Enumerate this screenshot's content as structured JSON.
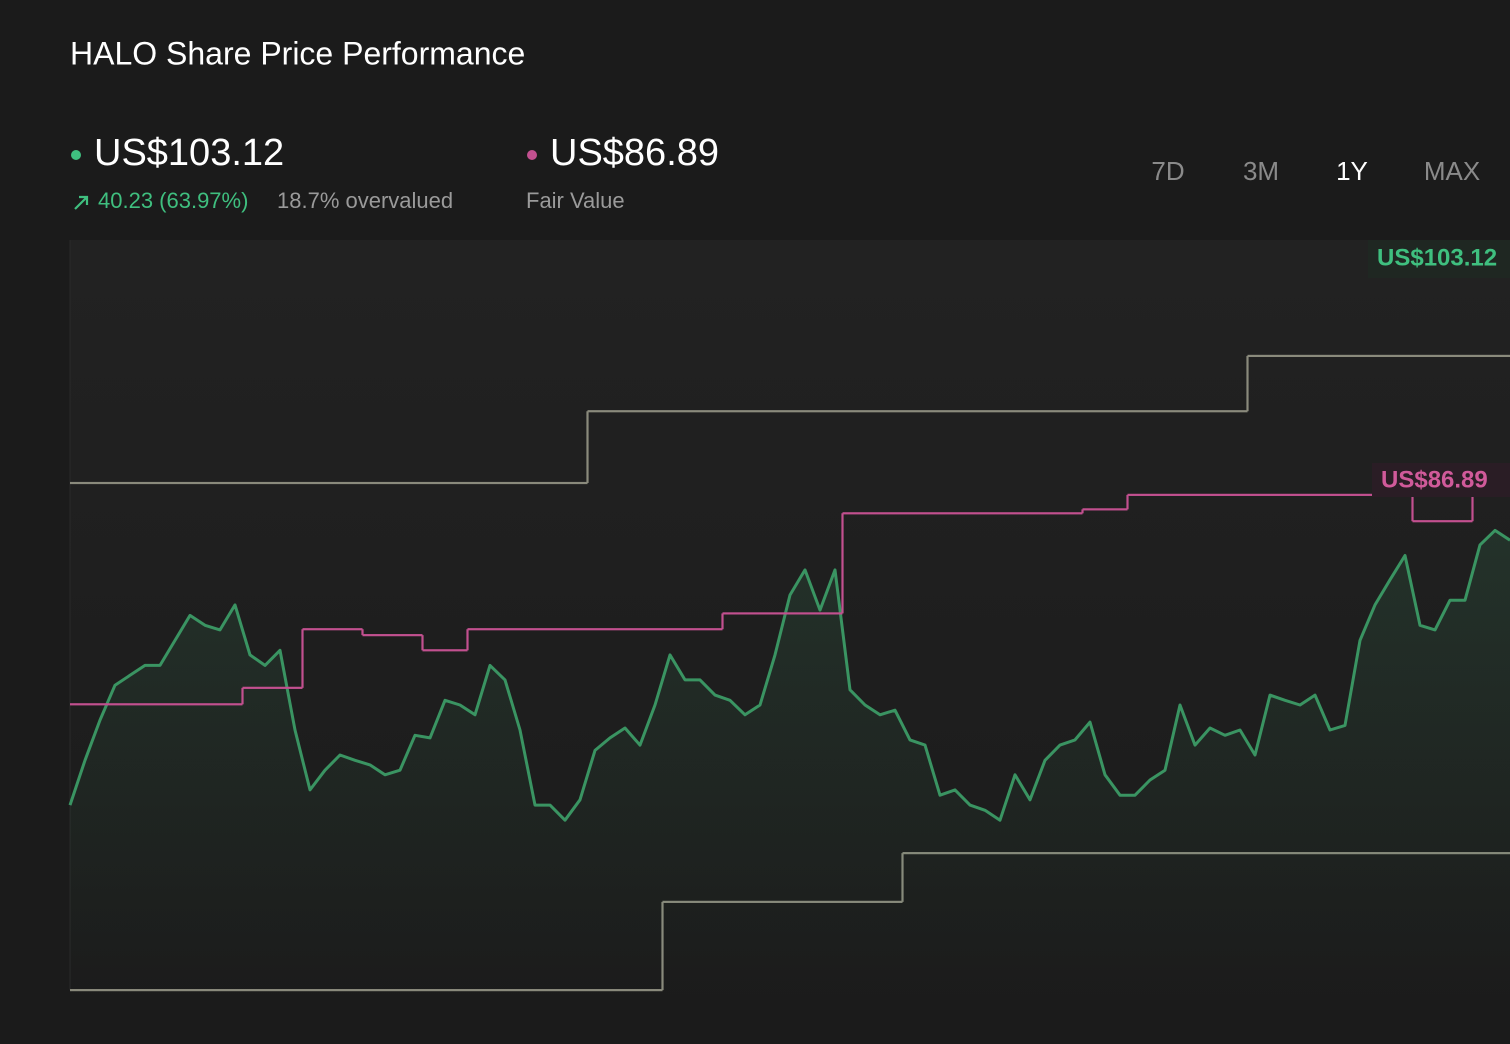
{
  "header": {
    "title": "HALO Share Price Performance",
    "price": "US$103.12",
    "change": "40.23 (63.97%)",
    "valuation": "18.7% overvalued",
    "fair_value": "US$86.89",
    "fair_value_label": "Fair Value"
  },
  "range_buttons": [
    "7D",
    "3M",
    "1Y",
    "MAX"
  ],
  "active_range": 2,
  "chart_data": {
    "type": "line",
    "price_tag": "US$103.12",
    "fair_value_tag": "US$86.89",
    "ylim": [
      33.3,
      148.7
    ],
    "series": [
      {
        "color": "#8a8a7c",
        "step": true,
        "values": [
          111.8,
          111.8,
          111.8,
          111.8,
          111.8,
          111.8,
          111.8,
          111.8,
          111.8,
          111.8,
          111.8,
          111.8,
          111.8,
          111.8,
          111.8,
          111.8,
          111.8,
          111.8,
          111.8,
          111.8,
          111.8,
          111.8,
          111.8,
          111.8,
          111.8,
          111.8,
          111.8,
          111.8,
          111.8,
          111.8,
          111.8,
          111.8,
          111.8,
          111.8,
          111.8,
          122.7,
          122.7,
          122.7,
          122.7,
          122.7,
          122.7,
          122.7,
          122.7,
          122.7,
          122.7,
          122.7,
          122.7,
          122.7,
          122.7,
          122.7,
          122.7,
          122.7,
          122.7,
          122.7,
          122.7,
          122.7,
          122.7,
          122.7,
          122.7,
          122.7,
          122.7,
          122.7,
          122.7,
          122.7,
          122.7,
          122.7,
          122.7,
          122.7,
          122.7,
          122.7,
          122.7,
          122.7,
          122.7,
          122.7,
          122.7,
          122.7,
          122.7,
          122.7,
          122.7,
          131.1,
          131.1,
          131.1,
          131.1,
          131.1,
          131.1,
          131.1,
          131.1,
          131.1,
          131.1,
          131.1,
          131.1,
          131.1,
          131.1,
          131.1,
          131.1,
          131.1,
          131.1
        ]
      },
      {
        "color": "#8a8a7c",
        "step": true,
        "values": [
          34.8,
          34.8,
          34.8,
          34.8,
          34.8,
          34.8,
          34.8,
          34.8,
          34.8,
          34.8,
          34.8,
          34.8,
          34.8,
          34.8,
          34.8,
          34.8,
          34.8,
          34.8,
          34.8,
          34.8,
          34.8,
          34.8,
          34.8,
          34.8,
          34.8,
          34.8,
          34.8,
          34.8,
          34.8,
          34.8,
          34.8,
          34.8,
          34.8,
          34.8,
          34.8,
          34.8,
          34.8,
          34.8,
          34.8,
          34.8,
          48.2,
          48.2,
          48.2,
          48.2,
          48.2,
          48.2,
          48.2,
          48.2,
          48.2,
          48.2,
          48.2,
          48.2,
          48.2,
          48.2,
          48.2,
          48.2,
          55.6,
          55.6,
          55.6,
          55.6,
          55.6,
          55.6,
          55.6,
          55.6,
          55.6,
          55.6,
          55.6,
          55.6,
          55.6,
          55.6,
          55.6,
          55.6,
          55.6,
          55.6,
          55.6,
          55.6,
          55.6,
          55.6,
          55.6,
          55.6,
          55.6,
          55.6,
          55.6,
          55.6,
          55.6,
          55.6,
          55.6,
          55.6,
          55.6,
          55.6,
          55.6,
          55.6,
          55.6,
          55.6,
          55.6,
          55.6,
          55.6
        ]
      },
      {
        "color": "#3a9462",
        "step": false,
        "values": [
          62.89,
          69.7,
          75.8,
          81.1,
          82.6,
          84.1,
          84.1,
          87.9,
          91.7,
          90.2,
          89.5,
          93.3,
          85.7,
          84.1,
          86.4,
          74.3,
          65.2,
          68.2,
          70.5,
          69.7,
          69.0,
          67.5,
          68.2,
          73.5,
          73.1,
          78.8,
          78.1,
          76.6,
          84.1,
          81.9,
          74.3,
          62.9,
          62.9,
          60.6,
          63.7,
          71.2,
          73.1,
          74.6,
          72.0,
          78.1,
          85.7,
          81.9,
          81.9,
          79.6,
          78.8,
          76.6,
          78.1,
          85.7,
          94.8,
          98.6,
          92.5,
          98.6,
          80.4,
          78.1,
          76.6,
          77.3,
          72.8,
          72.0,
          64.4,
          65.2,
          62.9,
          62.1,
          60.6,
          67.5,
          63.7,
          69.7,
          72.0,
          72.8,
          75.5,
          67.5,
          64.4,
          64.4,
          66.7,
          68.2,
          78.1,
          72.0,
          74.6,
          73.5,
          74.3,
          70.5,
          79.6,
          78.8,
          78.1,
          79.6,
          74.3,
          75.0,
          87.9,
          93.3,
          97.1,
          100.8,
          90.2,
          89.5,
          94.0,
          94.0,
          102.4,
          104.6,
          103.12
        ]
      },
      {
        "color": "#c2508f",
        "step": true,
        "values": [
          78.2,
          78.2,
          78.2,
          78.2,
          78.2,
          78.2,
          78.2,
          78.2,
          78.2,
          78.2,
          78.2,
          78.2,
          80.7,
          80.7,
          80.7,
          80.7,
          89.6,
          89.6,
          89.6,
          89.6,
          88.7,
          88.7,
          88.7,
          88.7,
          86.4,
          86.4,
          86.4,
          89.6,
          89.6,
          89.6,
          89.6,
          89.6,
          89.6,
          89.6,
          89.6,
          89.6,
          89.6,
          89.6,
          89.6,
          89.6,
          89.6,
          89.6,
          89.6,
          89.6,
          92,
          92,
          92,
          92,
          92,
          92,
          92,
          92,
          107.2,
          107.2,
          107.2,
          107.2,
          107.2,
          107.2,
          107.2,
          107.2,
          107.2,
          107.2,
          107.2,
          107.2,
          107.2,
          107.2,
          107.2,
          107.2,
          107.8,
          107.8,
          107.8,
          110,
          110,
          110,
          110,
          110,
          110,
          110,
          110,
          110,
          110,
          110,
          110,
          110,
          110,
          110,
          110,
          110,
          110,
          110,
          106,
          106,
          106,
          106,
          110,
          110,
          110
        ]
      }
    ]
  }
}
